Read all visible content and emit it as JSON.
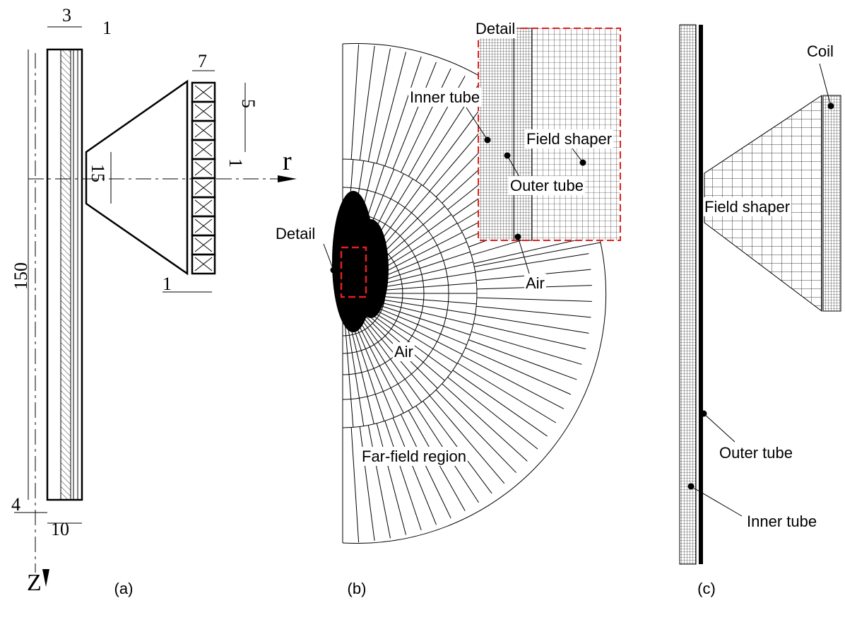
{
  "panel_a": {
    "caption": "(a)",
    "dim_top_left": "3",
    "dim_top_right": "1",
    "dim_coil_width": "7",
    "dim_coil_height": "5",
    "dim_shaper": "15",
    "dim_coil_gap": "1",
    "dim_length": "150",
    "dim_shaper_gap": "1",
    "dim_bottom": "4",
    "dim_width": "10",
    "axis_r": "r",
    "axis_z": "Z"
  },
  "panel_b": {
    "caption": "(b)",
    "inset_title": "Detail",
    "inner_tube": "Inner tube",
    "field_shaper": "Field shaper",
    "outer_tube": "Outer tube",
    "inset_air": "Air",
    "detail_label": "Detail",
    "air_label": "Air",
    "far_field": "Far-field region"
  },
  "panel_c": {
    "caption": "(c)",
    "coil": "Coil",
    "field_shaper": "Field shaper",
    "outer_tube": "Outer tube",
    "inner_tube": "Inner tube"
  }
}
